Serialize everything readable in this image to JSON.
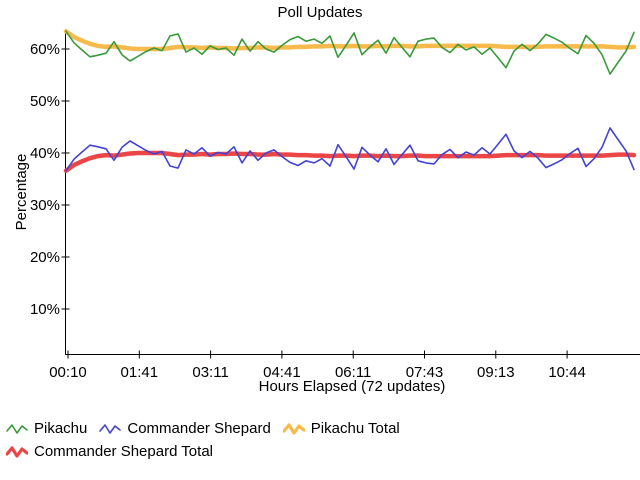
{
  "page": {
    "background": "#ffffff"
  },
  "chart_data": {
    "type": "line",
    "title": "Poll Updates",
    "xlabel": "Hours Elapsed (72 updates)",
    "ylabel": "Percentage",
    "x_tick_labels": [
      "00:10",
      "01:41",
      "03:11",
      "04:41",
      "06:11",
      "07:43",
      "09:13",
      "10:44"
    ],
    "y_ticks": [
      60,
      50,
      40,
      30,
      20,
      10
    ],
    "y_tick_labels": [
      "60%",
      "50%",
      "40%",
      "30%",
      "20%",
      "10%"
    ],
    "ylim": [
      1,
      64
    ],
    "n_points": 72,
    "grid": false,
    "legend_position": "bottom-left",
    "axis_color": "#000000",
    "series": [
      {
        "name": "Pikachu",
        "color": "#3a9a3a",
        "thickness": "thin",
        "values": [
          63.4,
          61.2,
          59.8,
          58.5,
          58.8,
          59.2,
          61.4,
          58.9,
          57.7,
          58.6,
          59.5,
          60.2,
          59.7,
          62.5,
          62.9,
          59.4,
          60.2,
          59.0,
          60.6,
          59.9,
          60.2,
          58.8,
          61.9,
          59.6,
          61.4,
          60.0,
          59.4,
          60.7,
          61.8,
          62.4,
          61.5,
          61.9,
          61.1,
          62.5,
          58.4,
          60.7,
          63.1,
          58.9,
          60.4,
          61.7,
          59.2,
          62.2,
          60.3,
          58.5,
          61.5,
          61.9,
          62.1,
          60.3,
          59.3,
          60.9,
          59.8,
          60.4,
          59.0,
          60.2,
          58.3,
          56.4,
          59.6,
          60.9,
          59.7,
          61.0,
          62.8,
          62.1,
          61.3,
          60.1,
          59.1,
          62.6,
          61.1,
          58.9,
          55.2,
          57.4,
          59.6,
          63.2
        ]
      },
      {
        "name": "Commander Shepard",
        "color": "#4343d6",
        "thickness": "thin",
        "values": [
          36.6,
          38.8,
          40.2,
          41.5,
          41.2,
          40.8,
          38.6,
          41.1,
          42.3,
          41.4,
          40.5,
          39.8,
          40.3,
          37.5,
          37.1,
          40.6,
          39.8,
          41.0,
          39.4,
          40.1,
          39.8,
          41.2,
          38.1,
          40.4,
          38.6,
          40.0,
          40.6,
          39.3,
          38.2,
          37.6,
          38.5,
          38.1,
          38.9,
          37.5,
          41.6,
          39.3,
          36.9,
          41.1,
          39.6,
          38.3,
          40.8,
          37.8,
          39.7,
          41.5,
          38.5,
          38.1,
          37.9,
          39.7,
          40.7,
          39.1,
          40.2,
          39.6,
          41.0,
          39.8,
          41.7,
          43.6,
          40.4,
          39.1,
          40.3,
          39.0,
          37.2,
          37.9,
          38.7,
          39.9,
          40.9,
          37.4,
          38.9,
          41.1,
          44.8,
          42.6,
          40.4,
          36.8
        ]
      },
      {
        "name": "Pikachu Total",
        "color": "#f8ba4a",
        "thickness": "thick",
        "values": [
          63.4,
          62.3,
          61.6,
          61.0,
          60.6,
          60.4,
          60.5,
          60.3,
          60.1,
          60.0,
          60.0,
          60.0,
          60.0,
          60.2,
          60.4,
          60.3,
          60.3,
          60.2,
          60.3,
          60.2,
          60.2,
          60.1,
          60.2,
          60.2,
          60.3,
          60.3,
          60.2,
          60.3,
          60.3,
          60.4,
          60.4,
          60.5,
          60.5,
          60.6,
          60.5,
          60.5,
          60.6,
          60.5,
          60.5,
          60.6,
          60.5,
          60.6,
          60.6,
          60.5,
          60.5,
          60.6,
          60.6,
          60.6,
          60.6,
          60.6,
          60.6,
          60.6,
          60.6,
          60.6,
          60.5,
          60.4,
          60.4,
          60.4,
          60.4,
          60.4,
          60.5,
          60.5,
          60.5,
          60.5,
          60.5,
          60.5,
          60.5,
          60.5,
          60.4,
          60.3,
          60.3,
          60.4
        ]
      },
      {
        "name": "Commander Shepard Total",
        "color": "#ec4545",
        "thickness": "thick",
        "values": [
          36.6,
          37.7,
          38.4,
          39.0,
          39.4,
          39.6,
          39.5,
          39.7,
          39.9,
          40.0,
          40.0,
          40.0,
          40.0,
          39.8,
          39.6,
          39.7,
          39.7,
          39.8,
          39.7,
          39.8,
          39.8,
          39.9,
          39.8,
          39.8,
          39.7,
          39.7,
          39.8,
          39.7,
          39.7,
          39.6,
          39.6,
          39.5,
          39.5,
          39.4,
          39.5,
          39.5,
          39.4,
          39.5,
          39.5,
          39.4,
          39.5,
          39.4,
          39.4,
          39.5,
          39.5,
          39.4,
          39.4,
          39.4,
          39.4,
          39.4,
          39.4,
          39.4,
          39.4,
          39.4,
          39.5,
          39.6,
          39.6,
          39.6,
          39.6,
          39.6,
          39.5,
          39.5,
          39.5,
          39.5,
          39.5,
          39.5,
          39.5,
          39.5,
          39.6,
          39.7,
          39.7,
          39.6
        ]
      }
    ]
  }
}
